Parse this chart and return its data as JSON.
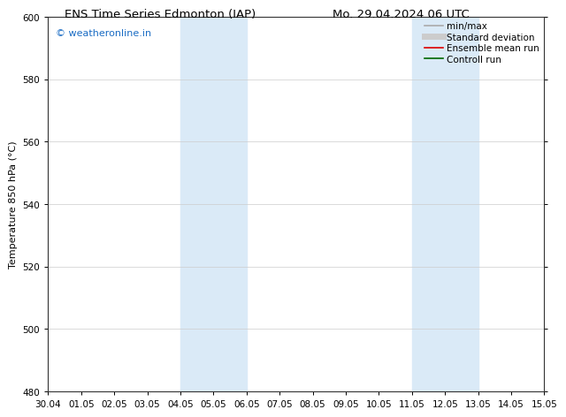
{
  "title_left": "ENS Time Series Edmonton (IAP)",
  "title_right": "Mo. 29.04.2024 06 UTC",
  "ylabel": "Temperature 850 hPa (°C)",
  "ylim": [
    480,
    600
  ],
  "yticks": [
    480,
    500,
    520,
    540,
    560,
    580,
    600
  ],
  "xtick_labels": [
    "30.04",
    "01.05",
    "02.05",
    "03.05",
    "04.05",
    "05.05",
    "06.05",
    "07.05",
    "08.05",
    "09.05",
    "10.05",
    "11.05",
    "12.05",
    "13.05",
    "14.05",
    "15.05"
  ],
  "shaded_regions": [
    {
      "xmin": 4,
      "xmax": 6,
      "color": "#daeaf7"
    },
    {
      "xmin": 11,
      "xmax": 13,
      "color": "#daeaf7"
    }
  ],
  "watermark_text": "© weatheronline.in",
  "watermark_color": "#1a6cc4",
  "legend_items": [
    {
      "label": "min/max",
      "color": "#aaaaaa",
      "lw": 1.2,
      "style": "solid"
    },
    {
      "label": "Standard deviation",
      "color": "#cccccc",
      "lw": 5,
      "style": "solid"
    },
    {
      "label": "Ensemble mean run",
      "color": "#dd0000",
      "lw": 1.2,
      "style": "solid"
    },
    {
      "label": "Controll run",
      "color": "#006600",
      "lw": 1.2,
      "style": "solid"
    }
  ],
  "background_color": "#ffffff",
  "grid_color": "#cccccc",
  "title_fontsize": 9.5,
  "tick_fontsize": 7.5,
  "ylabel_fontsize": 8,
  "legend_fontsize": 7.5,
  "watermark_fontsize": 8
}
